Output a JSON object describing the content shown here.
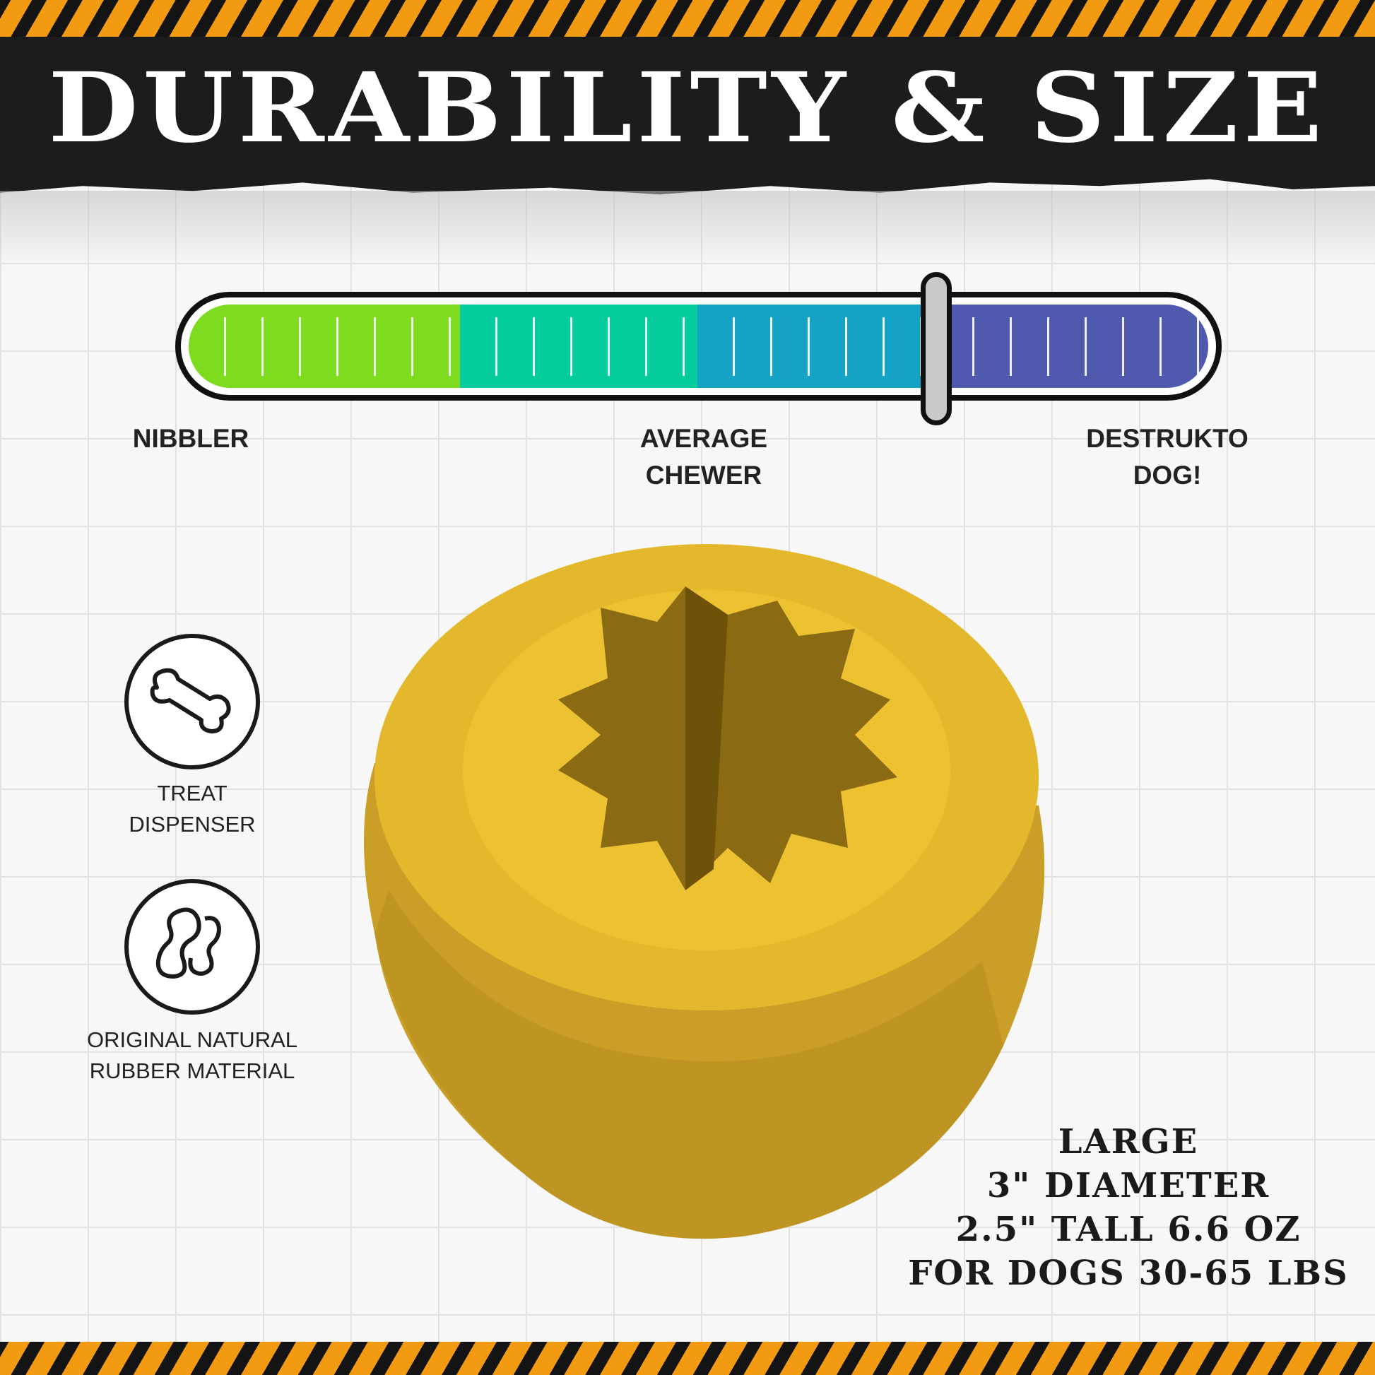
{
  "header": {
    "title": "DURABILITY & SIZE"
  },
  "durability_scale": {
    "level_percent": 73,
    "segment_colors": [
      "#7ddc1f",
      "#05cc9c",
      "#14a3c4",
      "#4f59ad"
    ],
    "labels": [
      {
        "line1": "NIBBLER",
        "line2": ""
      },
      {
        "line1": "AVERAGE",
        "line2": "CHEWER"
      },
      {
        "line1": "DESTRUKTO",
        "line2": "DOG!"
      }
    ]
  },
  "features": [
    {
      "icon": "bone-icon",
      "line1": "TREAT",
      "line2": "DISPENSER"
    },
    {
      "icon": "rubber-drop-icon",
      "line1": "ORIGINAL NATURAL",
      "line2": "RUBBER MATERIAL"
    }
  ],
  "specs": {
    "lines": [
      "LARGE",
      "3\" DIAMETER",
      "2.5\" TALL 6.6 OZ",
      "FOR DOGS 30-65 LBS"
    ]
  },
  "colors": {
    "stripe_orange": "#f29a12",
    "header_black": "#1c1c1c",
    "toy_yellow": "#e3b82c"
  }
}
